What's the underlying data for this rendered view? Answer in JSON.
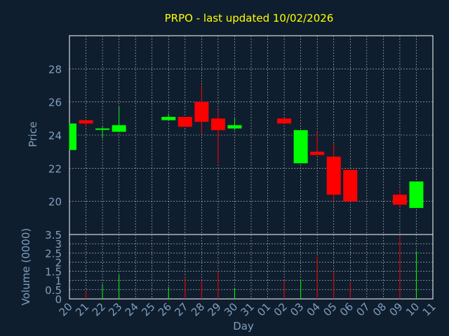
{
  "chart_data": {
    "type": "candlestick",
    "title": "PRPO - last updated 10/02/2026",
    "xlabel": "Day",
    "ylabel": "Price",
    "volume_ylabel": "Volume (0000)",
    "x_ticks": [
      "20",
      "21",
      "22",
      "23",
      "24",
      "25",
      "26",
      "27",
      "28",
      "29",
      "30",
      "31",
      "01",
      "02",
      "03",
      "04",
      "05",
      "06",
      "07",
      "08",
      "09",
      "10",
      "11"
    ],
    "price_ylim": [
      18.0,
      30.0
    ],
    "price_yticks": [
      "20",
      "22",
      "24",
      "26",
      "28"
    ],
    "volume_ylim": [
      0,
      3.5
    ],
    "volume_yticks": [
      "0",
      "0.5",
      "1",
      "1.5",
      "2",
      "2.5",
      "3",
      "3.5"
    ],
    "grid": true,
    "colors": {
      "background": "#0f1e2e",
      "up": "#00ff00",
      "down": "#ff0000",
      "title": "#ffff00",
      "axis_text": "#7f9fbf",
      "grid": "#c0c0c0",
      "frame": "#ffffff"
    },
    "candles": [
      {
        "day": "20",
        "open": 23.1,
        "high": 24.7,
        "low": 23.1,
        "close": 24.7,
        "volume": 0.0
      },
      {
        "day": "21",
        "open": 24.9,
        "high": 24.9,
        "low": 24.5,
        "close": 24.7,
        "volume": 0.45
      },
      {
        "day": "22",
        "open": 24.4,
        "high": 24.5,
        "low": 23.8,
        "close": 24.4,
        "volume": 0.8
      },
      {
        "day": "23",
        "open": 24.2,
        "high": 25.7,
        "low": 24.2,
        "close": 24.6,
        "volume": 1.3
      },
      {
        "day": "26",
        "open": 24.9,
        "high": 25.3,
        "low": 24.9,
        "close": 25.1,
        "volume": 0.65
      },
      {
        "day": "27",
        "open": 25.1,
        "high": 25.1,
        "low": 24.5,
        "close": 24.5,
        "volume": 1.2
      },
      {
        "day": "28",
        "open": 26.0,
        "high": 27.0,
        "low": 24.1,
        "close": 24.8,
        "volume": 1.0
      },
      {
        "day": "29",
        "open": 25.0,
        "high": 25.5,
        "low": 22.3,
        "close": 24.3,
        "volume": 1.5
      },
      {
        "day": "30",
        "open": 24.4,
        "high": 25.0,
        "low": 24.3,
        "close": 24.6,
        "volume": 0.6
      },
      {
        "day": "02",
        "open": 25.0,
        "high": 25.0,
        "low": 24.7,
        "close": 24.7,
        "volume": 1.0
      },
      {
        "day": "03",
        "open": 22.3,
        "high": 24.3,
        "low": 22.3,
        "close": 24.3,
        "volume": 1.05
      },
      {
        "day": "04",
        "open": 23.0,
        "high": 24.2,
        "low": 22.8,
        "close": 22.8,
        "volume": 2.3
      },
      {
        "day": "05",
        "open": 22.7,
        "high": 23.5,
        "low": 20.0,
        "close": 20.4,
        "volume": 1.5
      },
      {
        "day": "06",
        "open": 21.9,
        "high": 21.9,
        "low": 20.0,
        "close": 20.0,
        "volume": 0.9
      },
      {
        "day": "09",
        "open": 20.4,
        "high": 20.7,
        "low": 19.6,
        "close": 19.8,
        "volume": 3.4
      },
      {
        "day": "10",
        "open": 19.6,
        "high": 21.2,
        "low": 19.6,
        "close": 21.2,
        "volume": 2.6
      }
    ]
  }
}
